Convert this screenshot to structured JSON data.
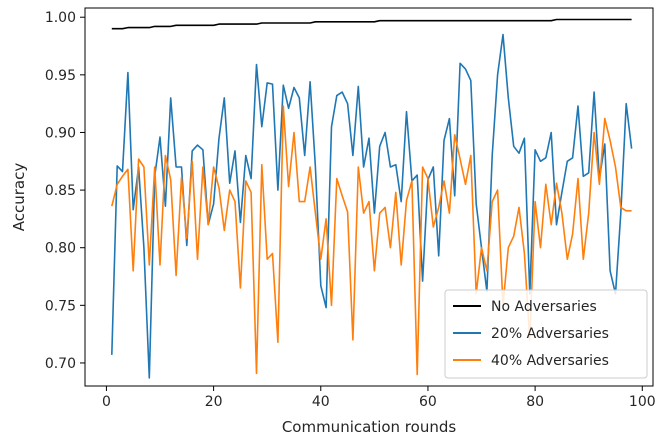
{
  "chart_data": {
    "type": "line",
    "xlabel": "Communication rounds",
    "ylabel": "Accuracy",
    "xlim": [
      -4,
      102
    ],
    "ylim": [
      0.68,
      1.008
    ],
    "xticks": [
      0,
      20,
      40,
      60,
      80,
      100
    ],
    "yticks": [
      0.7,
      0.75,
      0.8,
      0.85,
      0.9,
      0.95,
      1.0
    ],
    "xtick_labels": [
      "0",
      "20",
      "40",
      "60",
      "80",
      "100"
    ],
    "ytick_labels": [
      "0.70",
      "0.75",
      "0.80",
      "0.85",
      "0.90",
      "0.95",
      "1.00"
    ],
    "grid": false,
    "legend_position": "lower-right",
    "x": [
      1,
      2,
      3,
      4,
      5,
      6,
      7,
      8,
      9,
      10,
      11,
      12,
      13,
      14,
      15,
      16,
      17,
      18,
      19,
      20,
      21,
      22,
      23,
      24,
      25,
      26,
      27,
      28,
      29,
      30,
      31,
      32,
      33,
      34,
      35,
      36,
      37,
      38,
      39,
      40,
      41,
      42,
      43,
      44,
      45,
      46,
      47,
      48,
      49,
      50,
      51,
      52,
      53,
      54,
      55,
      56,
      57,
      58,
      59,
      60,
      61,
      62,
      63,
      64,
      65,
      66,
      67,
      68,
      69,
      70,
      71,
      72,
      73,
      74,
      75,
      76,
      77,
      78,
      79,
      80,
      81,
      82,
      83,
      84,
      85,
      86,
      87,
      88,
      89,
      90,
      91,
      92,
      93,
      94,
      95,
      96,
      97,
      98
    ],
    "series": [
      {
        "name": "No Adversaries",
        "color": "#000000",
        "values": [
          0.99,
          0.99,
          0.99,
          0.991,
          0.991,
          0.991,
          0.991,
          0.991,
          0.992,
          0.992,
          0.992,
          0.992,
          0.993,
          0.993,
          0.993,
          0.993,
          0.993,
          0.993,
          0.993,
          0.993,
          0.994,
          0.994,
          0.994,
          0.994,
          0.994,
          0.994,
          0.994,
          0.994,
          0.995,
          0.995,
          0.995,
          0.995,
          0.995,
          0.995,
          0.995,
          0.995,
          0.995,
          0.995,
          0.996,
          0.996,
          0.996,
          0.996,
          0.996,
          0.996,
          0.996,
          0.996,
          0.996,
          0.996,
          0.996,
          0.996,
          0.997,
          0.997,
          0.997,
          0.997,
          0.997,
          0.997,
          0.997,
          0.997,
          0.997,
          0.997,
          0.997,
          0.997,
          0.997,
          0.997,
          0.997,
          0.997,
          0.997,
          0.997,
          0.997,
          0.997,
          0.997,
          0.997,
          0.997,
          0.997,
          0.997,
          0.997,
          0.997,
          0.997,
          0.997,
          0.997,
          0.997,
          0.997,
          0.997,
          0.998,
          0.998,
          0.998,
          0.998,
          0.998,
          0.998,
          0.998,
          0.998,
          0.998,
          0.998,
          0.998,
          0.998,
          0.998,
          0.998,
          0.998
        ]
      },
      {
        "name": "20% Adversaries",
        "color": "#1f77b4",
        "values": [
          0.707,
          0.871,
          0.866,
          0.952,
          0.833,
          0.87,
          0.8,
          0.687,
          0.862,
          0.896,
          0.836,
          0.93,
          0.87,
          0.87,
          0.802,
          0.884,
          0.889,
          0.885,
          0.82,
          0.838,
          0.895,
          0.93,
          0.856,
          0.884,
          0.822,
          0.88,
          0.86,
          0.959,
          0.905,
          0.943,
          0.942,
          0.85,
          0.941,
          0.921,
          0.939,
          0.93,
          0.88,
          0.944,
          0.87,
          0.767,
          0.748,
          0.905,
          0.932,
          0.935,
          0.925,
          0.88,
          0.94,
          0.87,
          0.895,
          0.83,
          0.888,
          0.9,
          0.87,
          0.872,
          0.84,
          0.918,
          0.858,
          0.863,
          0.771,
          0.859,
          0.87,
          0.793,
          0.893,
          0.912,
          0.845,
          0.96,
          0.955,
          0.945,
          0.838,
          0.8,
          0.762,
          0.88,
          0.95,
          0.985,
          0.93,
          0.888,
          0.882,
          0.895,
          0.76,
          0.885,
          0.875,
          0.878,
          0.9,
          0.82,
          0.848,
          0.875,
          0.878,
          0.923,
          0.862,
          0.865,
          0.935,
          0.86,
          0.89,
          0.78,
          0.76,
          0.83,
          0.925,
          0.886
        ]
      },
      {
        "name": "40% Adversaries",
        "color": "#ff7f0e",
        "values": [
          0.836,
          0.855,
          0.862,
          0.868,
          0.78,
          0.877,
          0.87,
          0.785,
          0.87,
          0.785,
          0.88,
          0.859,
          0.776,
          0.861,
          0.808,
          0.875,
          0.79,
          0.87,
          0.82,
          0.87,
          0.852,
          0.815,
          0.85,
          0.84,
          0.765,
          0.858,
          0.848,
          0.691,
          0.872,
          0.79,
          0.795,
          0.718,
          0.923,
          0.853,
          0.9,
          0.84,
          0.84,
          0.87,
          0.83,
          0.79,
          0.825,
          0.75,
          0.86,
          0.845,
          0.831,
          0.72,
          0.87,
          0.83,
          0.84,
          0.78,
          0.83,
          0.835,
          0.8,
          0.848,
          0.785,
          0.841,
          0.858,
          0.69,
          0.87,
          0.86,
          0.818,
          0.835,
          0.858,
          0.83,
          0.898,
          0.877,
          0.855,
          0.88,
          0.76,
          0.8,
          0.78,
          0.84,
          0.85,
          0.75,
          0.8,
          0.81,
          0.835,
          0.795,
          0.72,
          0.84,
          0.8,
          0.855,
          0.82,
          0.856,
          0.83,
          0.79,
          0.812,
          0.86,
          0.79,
          0.83,
          0.9,
          0.855,
          0.912,
          0.893,
          0.87,
          0.835,
          0.832,
          0.832
        ]
      }
    ]
  }
}
